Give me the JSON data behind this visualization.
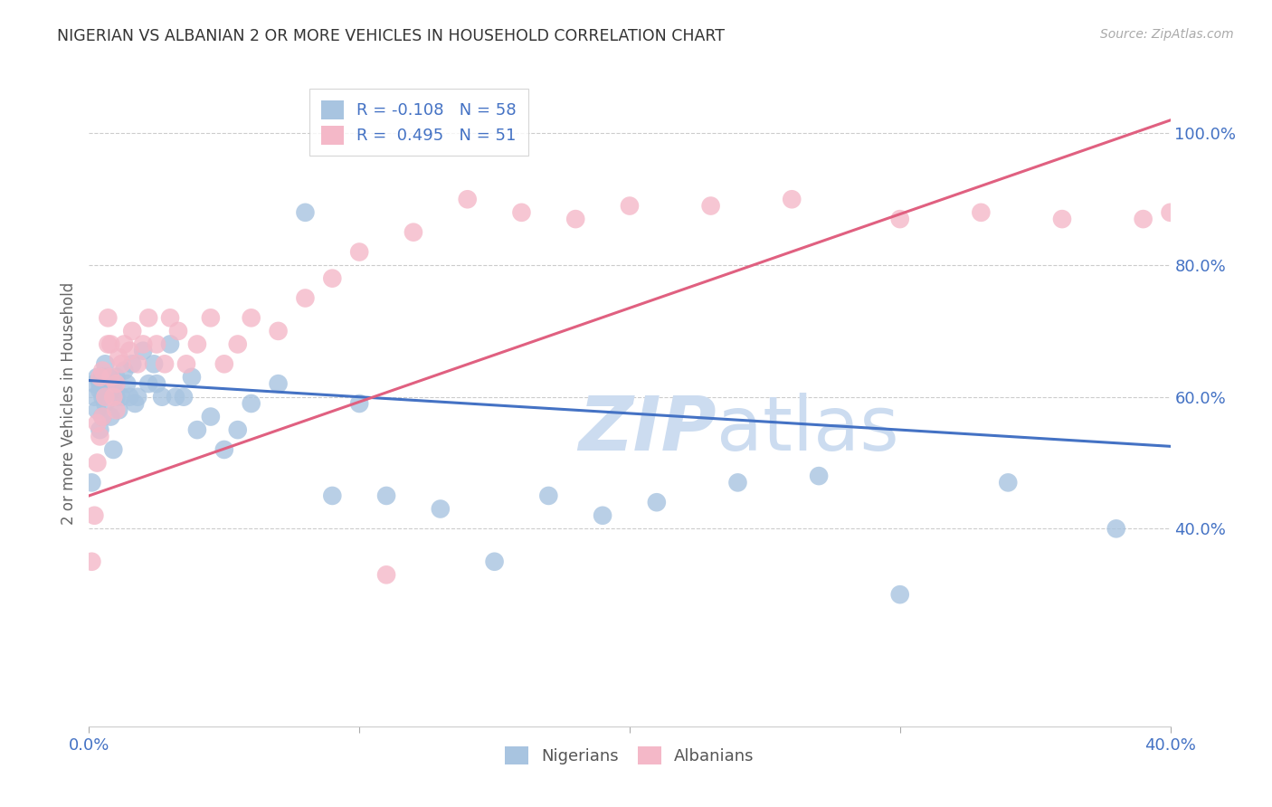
{
  "title": "NIGERIAN VS ALBANIAN 2 OR MORE VEHICLES IN HOUSEHOLD CORRELATION CHART",
  "source": "Source: ZipAtlas.com",
  "ylabel": "2 or more Vehicles in Household",
  "xlim": [
    0.0,
    0.4
  ],
  "ylim": [
    0.1,
    1.08
  ],
  "yticks": [
    0.4,
    0.6,
    0.8,
    1.0
  ],
  "ytick_labels": [
    "40.0%",
    "60.0%",
    "80.0%",
    "100.0%"
  ],
  "xticks": [
    0.0,
    0.1,
    0.2,
    0.3,
    0.4
  ],
  "xtick_labels": [
    "0.0%",
    "",
    "",
    "",
    "40.0%"
  ],
  "nigerian_R": "-0.108",
  "nigerian_N": "58",
  "albanian_R": "0.495",
  "albanian_N": "51",
  "nigerian_color": "#a8c4e0",
  "nigerian_line_color": "#4472c4",
  "albanian_color": "#f4b8c8",
  "albanian_line_color": "#e06080",
  "watermark_color": "#ccdcf0",
  "background_color": "#ffffff",
  "grid_color": "#cccccc",
  "title_color": "#333333",
  "tick_color": "#4472c4",
  "ylabel_color": "#666666",
  "nigerian_line_x": [
    0.0,
    0.4
  ],
  "nigerian_line_y": [
    0.625,
    0.525
  ],
  "albanian_line_x": [
    0.0,
    0.4
  ],
  "albanian_line_y": [
    0.45,
    1.02
  ],
  "nigerian_x": [
    0.001,
    0.002,
    0.002,
    0.003,
    0.003,
    0.004,
    0.004,
    0.004,
    0.005,
    0.005,
    0.005,
    0.006,
    0.006,
    0.007,
    0.007,
    0.008,
    0.008,
    0.009,
    0.009,
    0.01,
    0.01,
    0.011,
    0.012,
    0.013,
    0.014,
    0.015,
    0.016,
    0.017,
    0.018,
    0.02,
    0.022,
    0.024,
    0.025,
    0.027,
    0.03,
    0.032,
    0.035,
    0.038,
    0.04,
    0.045,
    0.05,
    0.055,
    0.06,
    0.07,
    0.08,
    0.09,
    0.1,
    0.11,
    0.13,
    0.15,
    0.17,
    0.19,
    0.21,
    0.24,
    0.27,
    0.3,
    0.34,
    0.38
  ],
  "nigerian_y": [
    0.47,
    0.6,
    0.62,
    0.58,
    0.63,
    0.61,
    0.55,
    0.62,
    0.57,
    0.63,
    0.6,
    0.59,
    0.65,
    0.61,
    0.63,
    0.57,
    0.61,
    0.52,
    0.62,
    0.6,
    0.63,
    0.58,
    0.6,
    0.64,
    0.62,
    0.6,
    0.65,
    0.59,
    0.6,
    0.67,
    0.62,
    0.65,
    0.62,
    0.6,
    0.68,
    0.6,
    0.6,
    0.63,
    0.55,
    0.57,
    0.52,
    0.55,
    0.59,
    0.62,
    0.88,
    0.45,
    0.59,
    0.45,
    0.43,
    0.35,
    0.45,
    0.42,
    0.44,
    0.47,
    0.48,
    0.3,
    0.47,
    0.4
  ],
  "albanian_x": [
    0.001,
    0.002,
    0.003,
    0.003,
    0.004,
    0.004,
    0.005,
    0.005,
    0.006,
    0.007,
    0.007,
    0.008,
    0.008,
    0.009,
    0.01,
    0.01,
    0.011,
    0.012,
    0.013,
    0.015,
    0.016,
    0.018,
    0.02,
    0.022,
    0.025,
    0.028,
    0.03,
    0.033,
    0.036,
    0.04,
    0.045,
    0.05,
    0.055,
    0.06,
    0.07,
    0.08,
    0.09,
    0.1,
    0.11,
    0.12,
    0.14,
    0.16,
    0.18,
    0.2,
    0.23,
    0.26,
    0.3,
    0.33,
    0.36,
    0.39,
    0.4
  ],
  "albanian_y": [
    0.35,
    0.42,
    0.5,
    0.56,
    0.54,
    0.63,
    0.57,
    0.64,
    0.6,
    0.68,
    0.72,
    0.63,
    0.68,
    0.6,
    0.62,
    0.58,
    0.66,
    0.65,
    0.68,
    0.67,
    0.7,
    0.65,
    0.68,
    0.72,
    0.68,
    0.65,
    0.72,
    0.7,
    0.65,
    0.68,
    0.72,
    0.65,
    0.68,
    0.72,
    0.7,
    0.75,
    0.78,
    0.82,
    0.33,
    0.85,
    0.9,
    0.88,
    0.87,
    0.89,
    0.89,
    0.9,
    0.87,
    0.88,
    0.87,
    0.87,
    0.88
  ]
}
